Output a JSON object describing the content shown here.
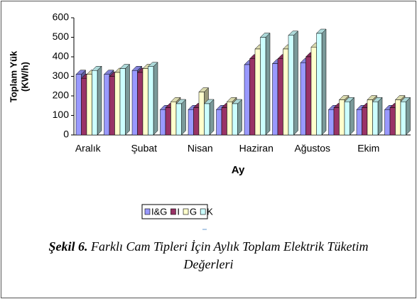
{
  "chart_data": {
    "type": "bar3d",
    "ylabel": [
      "Toplam Yük",
      "(KW/h)"
    ],
    "xlabel": "Ay",
    "categories": [
      "Aralık",
      null,
      "Şubat",
      null,
      "Nisan",
      null,
      "Haziran",
      null,
      "Ağustos",
      null,
      "Ekim",
      null
    ],
    "series": [
      {
        "name": "I&G",
        "color": "#9999ff",
        "values": [
          310,
          310,
          330,
          130,
          130,
          130,
          360,
          365,
          370,
          130,
          130,
          130
        ]
      },
      {
        "name": "I",
        "color": "#993366",
        "values": [
          290,
          300,
          320,
          140,
          140,
          140,
          390,
          390,
          400,
          140,
          140,
          140
        ]
      },
      {
        "name": "G",
        "color": "#ffffcc",
        "values": [
          310,
          320,
          340,
          170,
          220,
          170,
          440,
          440,
          450,
          180,
          180,
          180
        ]
      },
      {
        "name": "K",
        "color": "#ccffff",
        "values": [
          330,
          340,
          350,
          160,
          160,
          160,
          500,
          510,
          520,
          170,
          170,
          170
        ]
      }
    ],
    "ylim": [
      0,
      600
    ],
    "yticks": [
      0,
      100,
      200,
      300,
      400,
      500,
      600
    ],
    "caption_label": "Şekil 6.",
    "caption_text": "Farklı Cam Tipleri İçin Aylık Toplam Elektrik Tüketim Değerleri"
  }
}
